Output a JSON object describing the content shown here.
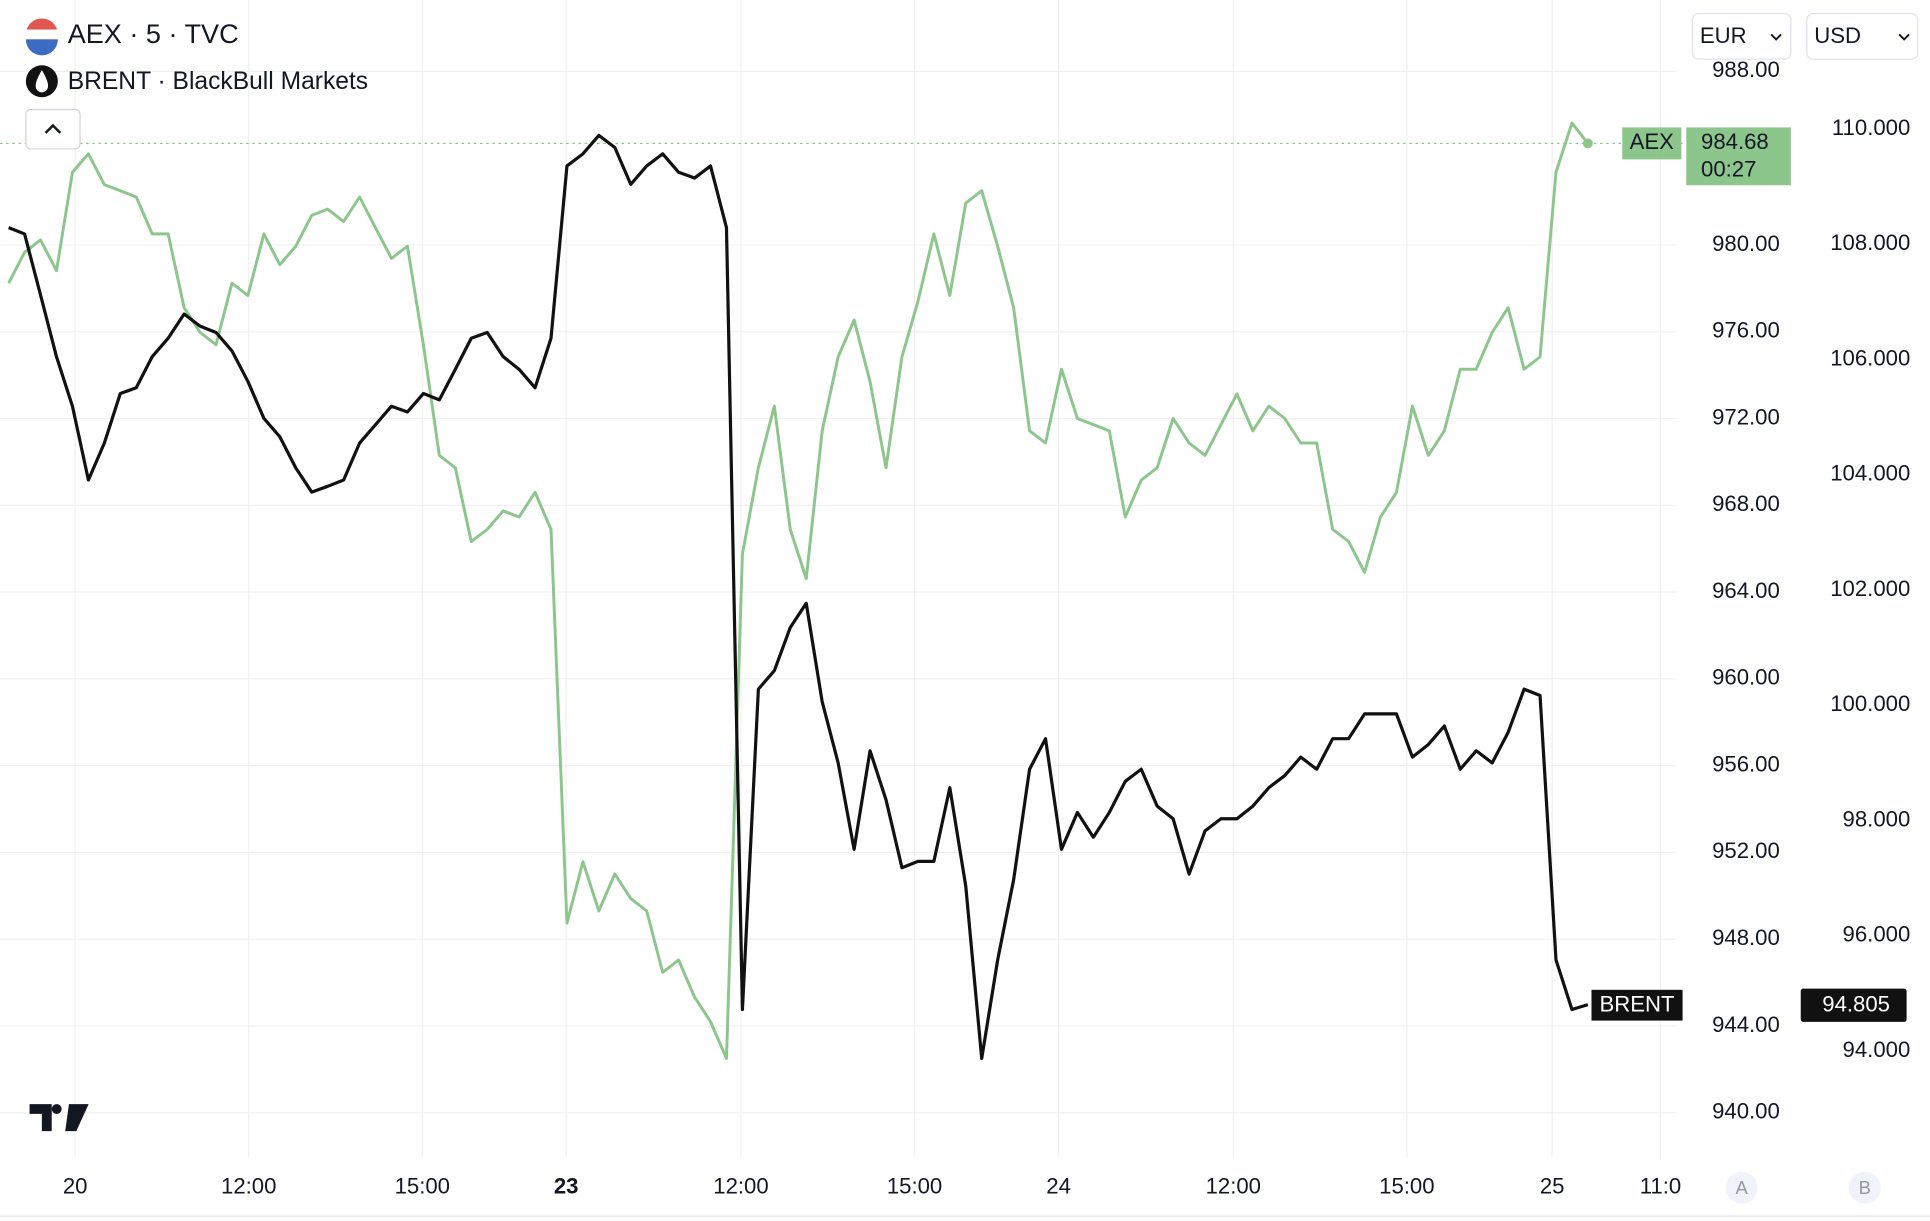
{
  "chart_data": {
    "type": "line",
    "legend_items": [
      "AEX · 5 · TVC",
      "BRENT · BlackBull Markets"
    ],
    "currencies": [
      "EUR",
      "USD"
    ],
    "scale_buttons": [
      "A",
      "B"
    ],
    "xlim": [
      -0.54,
      104.55
    ],
    "xticks": [
      {
        "value": 4.17,
        "label": "20"
      },
      {
        "value": 15.05,
        "label": "12:00"
      },
      {
        "value": 25.93,
        "label": "15:00"
      },
      {
        "value": 34.95,
        "label": "23"
      },
      {
        "value": 45.91,
        "label": "12:00"
      },
      {
        "value": 56.79,
        "label": "15:00"
      },
      {
        "value": 65.82,
        "label": "24"
      },
      {
        "value": 76.77,
        "label": "12:00"
      },
      {
        "value": 87.65,
        "label": "15:00"
      },
      {
        "value": 96.76,
        "label": "25"
      },
      {
        "value": 103.55,
        "label": "11:0"
      }
    ],
    "ylim": [
      937.96,
      991.29
    ],
    "yticks": [
      {
        "value": 940,
        "label": "940.00"
      },
      {
        "value": 944,
        "label": "944.00"
      },
      {
        "value": 948,
        "label": "948.00"
      },
      {
        "value": 952,
        "label": "952.00"
      },
      {
        "value": 956,
        "label": "956.00"
      },
      {
        "value": 960,
        "label": "960.00"
      },
      {
        "value": 964,
        "label": "964.00"
      },
      {
        "value": 968,
        "label": "968.00"
      },
      {
        "value": 972,
        "label": "972.00"
      },
      {
        "value": 976,
        "label": "976.00"
      },
      {
        "value": 980,
        "label": "980.00"
      },
      {
        "value": 988,
        "label": "988.00"
      }
    ],
    "y2lim": [
      92.16,
      112.24
    ],
    "y2ticks": [
      {
        "value": 94,
        "label": "94.000"
      },
      {
        "value": 96,
        "label": "96.000"
      },
      {
        "value": 98,
        "label": "98.000"
      },
      {
        "value": 100,
        "label": "100.000"
      },
      {
        "value": 102,
        "label": "102.000"
      },
      {
        "value": 104,
        "label": "104.000"
      },
      {
        "value": 106,
        "label": "106.000"
      },
      {
        "value": 108,
        "label": "108.000"
      },
      {
        "value": 110,
        "label": "110.000"
      }
    ],
    "grid": true,
    "series": [
      {
        "name": "AEX",
        "color": "#8dc68d",
        "countdown": "00:27",
        "values": [
          978.24,
          979.66,
          980.23,
          978.81,
          983.35,
          984.2,
          982.78,
          982.5,
          982.21,
          980.51,
          980.51,
          977.11,
          975.97,
          975.4,
          978.24,
          977.67,
          980.51,
          979.09,
          979.94,
          981.36,
          981.65,
          981.08,
          982.21,
          980.79,
          979.38,
          979.94,
          975.4,
          970.3,
          969.73,
          966.33,
          966.89,
          967.74,
          967.46,
          968.6,
          966.89,
          948.74,
          951.57,
          949.3,
          951.01,
          949.87,
          949.3,
          946.47,
          947.04,
          945.33,
          944.2,
          942.5,
          965.76,
          969.73,
          972.57,
          966.89,
          964.62,
          971.43,
          974.84,
          976.54,
          973.7,
          969.73,
          974.84,
          977.39,
          980.51,
          977.67,
          981.93,
          982.5,
          979.94,
          977.11,
          971.43,
          970.87,
          974.27,
          972.0,
          971.72,
          971.43,
          967.46,
          969.16,
          969.73,
          972.0,
          970.87,
          970.3,
          971.72,
          973.13,
          971.43,
          972.57,
          972.0,
          970.87,
          970.87,
          966.89,
          966.33,
          964.91,
          967.46,
          968.6,
          972.57,
          970.3,
          971.43,
          974.27,
          974.27,
          975.97,
          977.11,
          974.27,
          974.84,
          983.35,
          985.62,
          984.68
        ]
      },
      {
        "name": "BRENT",
        "color": "#111111",
        "axis": "y2",
        "values": [
          108.29,
          108.18,
          107.12,
          106.05,
          105.19,
          103.91,
          104.55,
          105.41,
          105.51,
          106.05,
          106.37,
          106.79,
          106.58,
          106.47,
          106.15,
          105.62,
          104.98,
          104.66,
          104.12,
          103.7,
          103.8,
          103.91,
          104.55,
          104.87,
          105.19,
          105.09,
          105.41,
          105.3,
          105.83,
          106.37,
          106.47,
          106.05,
          105.83,
          105.51,
          106.37,
          109.36,
          109.57,
          109.89,
          109.68,
          109.04,
          109.36,
          109.57,
          109.25,
          109.15,
          109.36,
          108.29,
          94.72,
          100.28,
          100.6,
          101.35,
          101.77,
          100.06,
          99.0,
          97.5,
          99.21,
          98.36,
          97.18,
          97.29,
          97.29,
          98.57,
          96.86,
          93.87,
          95.58,
          96.97,
          98.89,
          99.42,
          97.5,
          98.14,
          97.71,
          98.14,
          98.68,
          98.89,
          98.25,
          98.03,
          97.07,
          97.82,
          98.03,
          98.03,
          98.25,
          98.57,
          98.78,
          99.1,
          98.89,
          99.42,
          99.42,
          99.85,
          99.85,
          99.85,
          99.1,
          99.32,
          99.64,
          98.89,
          99.21,
          99.0,
          99.53,
          100.28,
          100.17,
          95.58,
          94.72,
          94.805
        ]
      }
    ]
  }
}
